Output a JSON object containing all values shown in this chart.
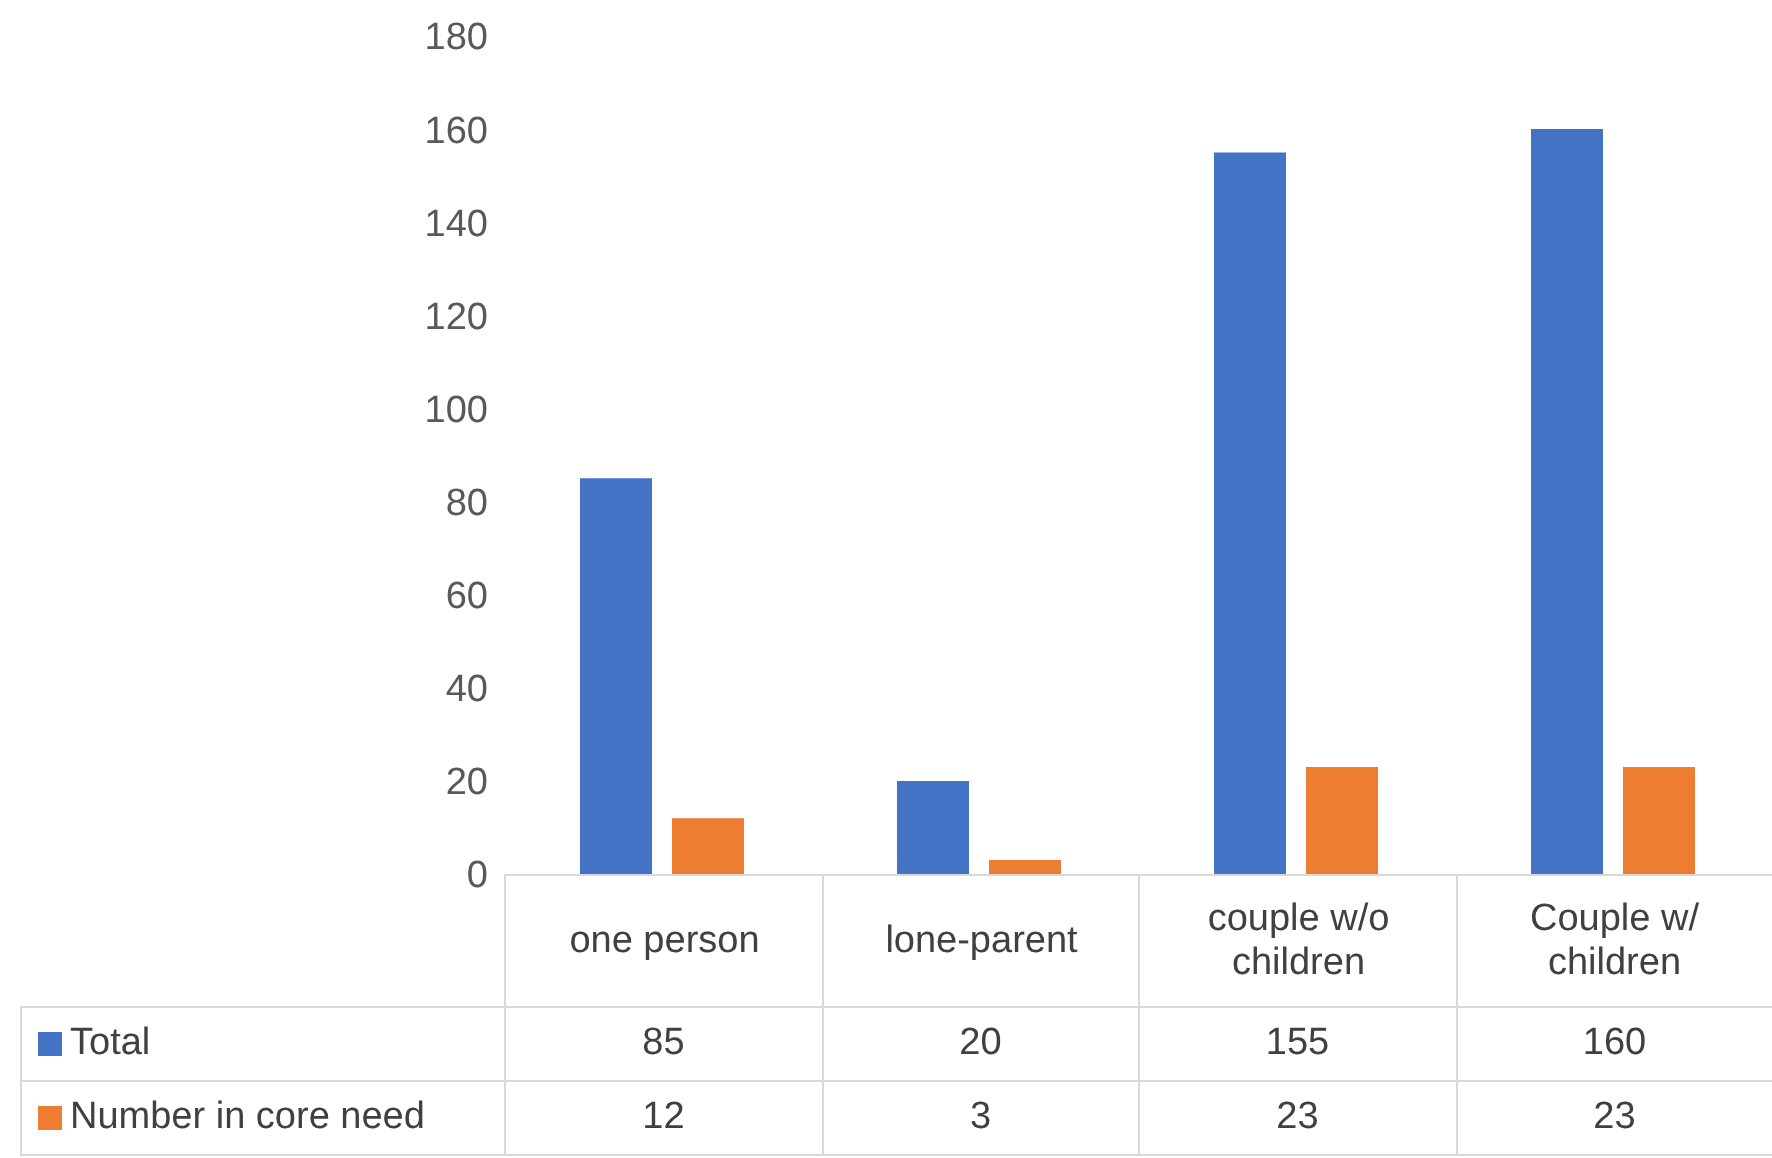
{
  "chart_data": {
    "type": "bar",
    "categories": [
      "one person",
      "lone-parent",
      "couple w/o children",
      "Couple w/ children"
    ],
    "series": [
      {
        "name": "Total",
        "color": "#4472c4",
        "values": [
          85,
          20,
          155,
          160
        ]
      },
      {
        "name": "Number in core need",
        "color": "#ed7d31",
        "values": [
          12,
          3,
          23,
          23
        ]
      }
    ],
    "ylim": [
      0,
      180
    ],
    "yticks": [
      0,
      20,
      40,
      60,
      80,
      100,
      120,
      140,
      160,
      180
    ],
    "legend": "bottom",
    "data_labels": true
  }
}
